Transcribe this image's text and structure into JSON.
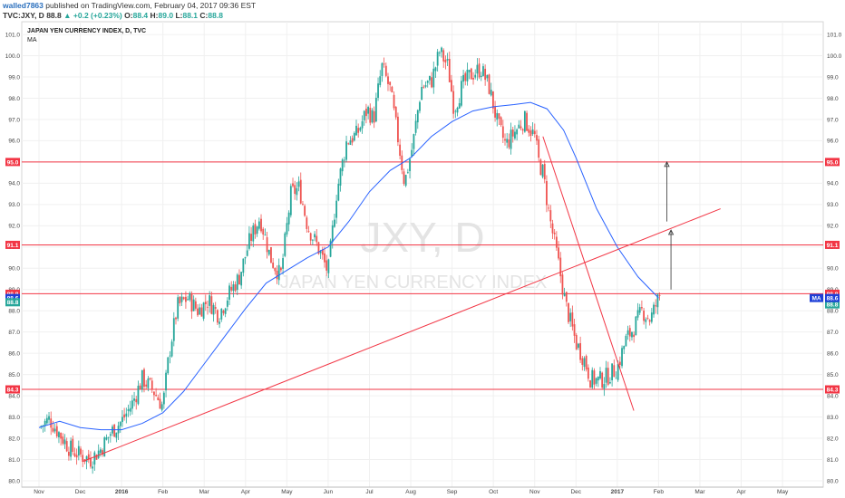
{
  "header": {
    "user": "walled7863",
    "published": "published on TradingView.com, February 04, 2017 09:36 EST",
    "symbol": "TVC:JXY, D",
    "price": "88.8",
    "change": "▲ +0.2 (+0.23%)",
    "ohlc": {
      "o_label": "O:",
      "o": "88.4",
      "h_label": "H:",
      "h": "89.0",
      "l_label": "L:",
      "l": "88.1",
      "c_label": "C:",
      "c": "88.8"
    }
  },
  "chart_data": {
    "type": "candlestick",
    "title": "JAPAN YEN CURRENCY INDEX, D, TVC",
    "indicator": "MA",
    "watermark": "JXY, D",
    "watermark_sub": "JAPAN YEN CURRENCY INDEX",
    "ylim": [
      79.7,
      101.6
    ],
    "y_ticks": [
      "80.0",
      "81.0",
      "82.0",
      "83.0",
      "84.0",
      "85.0",
      "86.0",
      "87.0",
      "88.0",
      "89.0",
      "90.0",
      "91.0",
      "92.0",
      "93.0",
      "94.0",
      "95.0",
      "96.0",
      "97.0",
      "98.0",
      "99.0",
      "100.0",
      "101.0"
    ],
    "x_ticks": [
      {
        "label": "Nov",
        "bold": false
      },
      {
        "label": "Dec",
        "bold": false
      },
      {
        "label": "2016",
        "bold": true
      },
      {
        "label": "Feb",
        "bold": false
      },
      {
        "label": "Mar",
        "bold": false
      },
      {
        "label": "Apr",
        "bold": false
      },
      {
        "label": "May",
        "bold": false
      },
      {
        "label": "Jun",
        "bold": false
      },
      {
        "label": "Jul",
        "bold": false
      },
      {
        "label": "Aug",
        "bold": false
      },
      {
        "label": "Sep",
        "bold": false
      },
      {
        "label": "Oct",
        "bold": false
      },
      {
        "label": "Nov",
        "bold": false
      },
      {
        "label": "Dec",
        "bold": false
      },
      {
        "label": "2017",
        "bold": true
      },
      {
        "label": "Feb",
        "bold": false
      },
      {
        "label": "Mar",
        "bold": false
      },
      {
        "label": "Apr",
        "bold": false
      },
      {
        "label": "May",
        "bold": false
      }
    ],
    "x_tick_index": [
      0,
      1,
      2,
      3,
      4,
      5,
      6,
      7,
      8,
      9,
      10,
      11,
      12,
      13,
      14,
      15,
      16,
      17,
      18
    ],
    "levels": [
      {
        "value": 95.0,
        "label": "95.0",
        "color": "#f23645"
      },
      {
        "value": 91.1,
        "label": "91.1",
        "color": "#f23645"
      },
      {
        "value": 88.8,
        "label": "88.8",
        "color": "#f23645"
      },
      {
        "value": 84.3,
        "label": "84.3",
        "color": "#f23645"
      }
    ],
    "price_tags": [
      {
        "value": 88.6,
        "label": "88.6",
        "color": "#1e3fd8"
      },
      {
        "value": 88.4,
        "label": "88.8",
        "color": "#26a69a"
      }
    ],
    "right_tags": [
      {
        "value": 95.0,
        "label": "95.0",
        "color": "#f23645"
      },
      {
        "value": 91.1,
        "label": "91.1",
        "color": "#f23645"
      },
      {
        "value": 88.8,
        "label": "88.8",
        "color": "#f23645"
      },
      {
        "value": 88.3,
        "label": "88.8",
        "color": "#26a69a"
      },
      {
        "value": 88.6,
        "label": "MA",
        "color": "#1e3fd8"
      },
      {
        "value": 88.6,
        "label": "88.6",
        "color": "#1e3fd8"
      },
      {
        "value": 84.3,
        "label": "84.3",
        "color": "#f23645"
      }
    ],
    "close_series": [
      {
        "t": 0.0,
        "v": 82.5
      },
      {
        "t": 0.25,
        "v": 82.9
      },
      {
        "t": 0.5,
        "v": 82.2
      },
      {
        "t": 0.75,
        "v": 81.5
      },
      {
        "t": 1.0,
        "v": 81.2
      },
      {
        "t": 1.25,
        "v": 81.0
      },
      {
        "t": 1.5,
        "v": 81.5
      },
      {
        "t": 1.75,
        "v": 82.3
      },
      {
        "t": 2.0,
        "v": 82.8
      },
      {
        "t": 2.25,
        "v": 83.6
      },
      {
        "t": 2.5,
        "v": 84.8
      },
      {
        "t": 2.75,
        "v": 84.3
      },
      {
        "t": 3.0,
        "v": 83.5
      },
      {
        "t": 3.15,
        "v": 86.0
      },
      {
        "t": 3.35,
        "v": 88.2
      },
      {
        "t": 3.6,
        "v": 88.6
      },
      {
        "t": 3.85,
        "v": 88.0
      },
      {
        "t": 4.1,
        "v": 88.5
      },
      {
        "t": 4.35,
        "v": 87.8
      },
      {
        "t": 4.6,
        "v": 88.8
      },
      {
        "t": 4.85,
        "v": 89.6
      },
      {
        "t": 5.1,
        "v": 91.3
      },
      {
        "t": 5.35,
        "v": 92.4
      },
      {
        "t": 5.6,
        "v": 90.5
      },
      {
        "t": 5.85,
        "v": 89.6
      },
      {
        "t": 6.1,
        "v": 93.5
      },
      {
        "t": 6.3,
        "v": 93.8
      },
      {
        "t": 6.5,
        "v": 92.0
      },
      {
        "t": 6.75,
        "v": 91.0
      },
      {
        "t": 7.0,
        "v": 89.8
      },
      {
        "t": 7.2,
        "v": 93.5
      },
      {
        "t": 7.45,
        "v": 96.0
      },
      {
        "t": 7.7,
        "v": 96.3
      },
      {
        "t": 7.95,
        "v": 97.5
      },
      {
        "t": 8.1,
        "v": 97.0
      },
      {
        "t": 8.3,
        "v": 99.5
      },
      {
        "t": 8.5,
        "v": 98.4
      },
      {
        "t": 8.7,
        "v": 96.0
      },
      {
        "t": 8.85,
        "v": 94.0
      },
      {
        "t": 9.05,
        "v": 95.8
      },
      {
        "t": 9.25,
        "v": 98.5
      },
      {
        "t": 9.5,
        "v": 98.8
      },
      {
        "t": 9.7,
        "v": 100.2
      },
      {
        "t": 9.9,
        "v": 99.5
      },
      {
        "t": 10.05,
        "v": 97.5
      },
      {
        "t": 10.25,
        "v": 98.6
      },
      {
        "t": 10.45,
        "v": 99.1
      },
      {
        "t": 10.7,
        "v": 99.4
      },
      {
        "t": 10.9,
        "v": 98.5
      },
      {
        "t": 11.1,
        "v": 96.8
      },
      {
        "t": 11.3,
        "v": 95.8
      },
      {
        "t": 11.55,
        "v": 96.5
      },
      {
        "t": 11.75,
        "v": 97.0
      },
      {
        "t": 12.0,
        "v": 96.2
      },
      {
        "t": 12.1,
        "v": 95.0
      },
      {
        "t": 12.2,
        "v": 94.5
      },
      {
        "t": 12.35,
        "v": 92.5
      },
      {
        "t": 12.55,
        "v": 90.5
      },
      {
        "t": 12.75,
        "v": 88.3
      },
      {
        "t": 13.0,
        "v": 86.5
      },
      {
        "t": 13.2,
        "v": 85.7
      },
      {
        "t": 13.35,
        "v": 84.8
      },
      {
        "t": 13.55,
        "v": 84.7
      },
      {
        "t": 13.75,
        "v": 84.9
      },
      {
        "t": 14.0,
        "v": 85.3
      },
      {
        "t": 14.2,
        "v": 86.6
      },
      {
        "t": 14.4,
        "v": 87.2
      },
      {
        "t": 14.6,
        "v": 88.0
      },
      {
        "t": 14.8,
        "v": 87.6
      },
      {
        "t": 15.0,
        "v": 88.6
      },
      {
        "t": 15.05,
        "v": 88.8
      }
    ],
    "ma_series": [
      {
        "t": 0.0,
        "v": 82.5
      },
      {
        "t": 0.5,
        "v": 82.8
      },
      {
        "t": 1.0,
        "v": 82.5
      },
      {
        "t": 1.5,
        "v": 82.4
      },
      {
        "t": 2.0,
        "v": 82.4
      },
      {
        "t": 2.5,
        "v": 82.7
      },
      {
        "t": 3.0,
        "v": 83.2
      },
      {
        "t": 3.5,
        "v": 84.2
      },
      {
        "t": 4.0,
        "v": 85.5
      },
      {
        "t": 4.5,
        "v": 86.8
      },
      {
        "t": 5.0,
        "v": 88.1
      },
      {
        "t": 5.5,
        "v": 89.3
      },
      {
        "t": 6.0,
        "v": 89.9
      },
      {
        "t": 6.5,
        "v": 90.5
      },
      {
        "t": 7.0,
        "v": 91.0
      },
      {
        "t": 7.5,
        "v": 92.2
      },
      {
        "t": 8.0,
        "v": 93.6
      },
      {
        "t": 8.5,
        "v": 94.6
      },
      {
        "t": 9.0,
        "v": 95.2
      },
      {
        "t": 9.5,
        "v": 96.2
      },
      {
        "t": 10.0,
        "v": 96.9
      },
      {
        "t": 10.5,
        "v": 97.4
      },
      {
        "t": 11.0,
        "v": 97.6
      },
      {
        "t": 11.5,
        "v": 97.7
      },
      {
        "t": 11.9,
        "v": 97.8
      },
      {
        "t": 12.3,
        "v": 97.5
      },
      {
        "t": 12.7,
        "v": 96.5
      },
      {
        "t": 13.0,
        "v": 95.2
      },
      {
        "t": 13.5,
        "v": 92.8
      },
      {
        "t": 14.0,
        "v": 91.0
      },
      {
        "t": 14.5,
        "v": 89.6
      },
      {
        "t": 15.0,
        "v": 88.6
      }
    ],
    "trendlines": [
      {
        "from": {
          "t": 1.05,
          "v": 80.9
        },
        "to": {
          "t": 16.5,
          "v": 92.8
        },
        "color": "#f23645"
      },
      {
        "from": {
          "t": 12.2,
          "v": 96.2
        },
        "to": {
          "t": 14.4,
          "v": 83.3
        },
        "color": "#f23645"
      }
    ],
    "arrows": [
      {
        "from": {
          "t": 15.2,
          "v": 92.2
        },
        "to": {
          "t": 15.2,
          "v": 95.0
        }
      },
      {
        "from": {
          "t": 15.3,
          "v": 89.0
        },
        "to": {
          "t": 15.3,
          "v": 91.8
        }
      }
    ],
    "colors": {
      "up": "#26a69a",
      "down": "#ef5350",
      "grid": "#f0f0f0",
      "ma": "#2962ff",
      "level": "#f23645"
    }
  }
}
